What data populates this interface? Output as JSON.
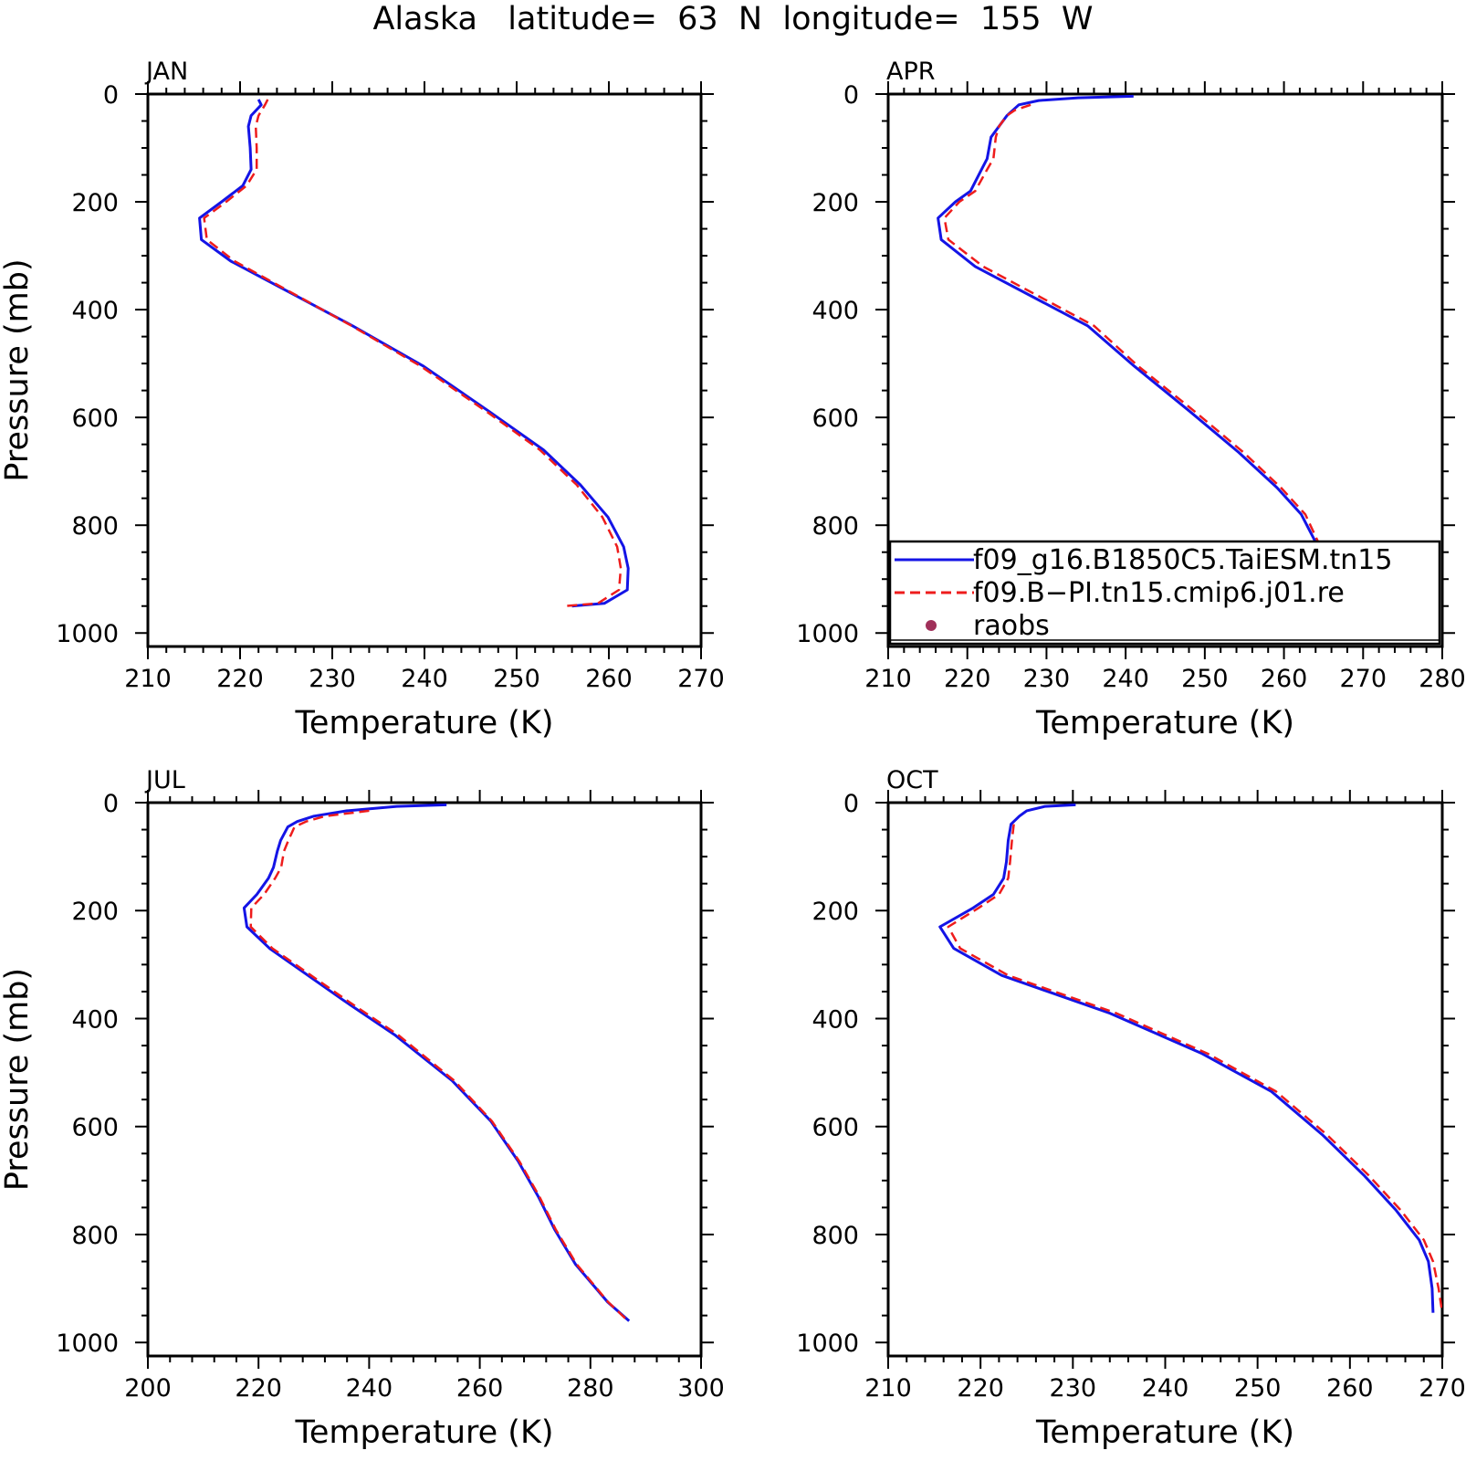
{
  "title": "Alaska   latitude=  63  N  longitude=  155  W",
  "legend": {
    "entries": [
      {
        "label": "f09_g16.B1850C5.TaiESM.tn15",
        "style": "solid",
        "color": "#1414e6"
      },
      {
        "label": "f09.B−PI.tn15.cmip6.j01.re",
        "style": "dashed",
        "color": "#ee1c1c"
      },
      {
        "label": "raobs",
        "style": "dot",
        "color": "#a0305a"
      }
    ]
  },
  "chart_data": [
    {
      "type": "line",
      "panel": "JAN",
      "xlabel": "Temperature (K)",
      "ylabel": "Pressure (mb)",
      "xlim": [
        210,
        270
      ],
      "ylim": [
        1000,
        0
      ],
      "xticks": [
        210,
        220,
        230,
        240,
        250,
        260,
        270
      ],
      "yticks": [
        0,
        200,
        400,
        600,
        800,
        1000
      ],
      "y_reversed": true,
      "series": [
        {
          "name": "f09_g16.B1850C5.TaiESM.tn15",
          "color": "#1414e6",
          "style": "solid",
          "points": [
            [
              222,
              10
            ],
            [
              222.3,
              20
            ],
            [
              221.2,
              40
            ],
            [
              220.9,
              60
            ],
            [
              221.1,
              100
            ],
            [
              221.2,
              140
            ],
            [
              220.3,
              170
            ],
            [
              218,
              200
            ],
            [
              215.6,
              230
            ],
            [
              215.8,
              270
            ],
            [
              219,
              310
            ],
            [
              232.2,
              430
            ],
            [
              239.9,
              505
            ],
            [
              247.1,
              590
            ],
            [
              252.9,
              660
            ],
            [
              256.9,
              725
            ],
            [
              259.9,
              785
            ],
            [
              261.6,
              840
            ],
            [
              262.1,
              880
            ],
            [
              262,
              920
            ],
            [
              259.5,
              945
            ],
            [
              256,
              950
            ]
          ]
        },
        {
          "name": "f09.B−PI.tn15.cmip6.j01.re",
          "color": "#ee1c1c",
          "style": "dashed",
          "points": [
            [
              223,
              10
            ],
            [
              222.7,
              20
            ],
            [
              222,
              40
            ],
            [
              221.7,
              60
            ],
            [
              221.8,
              100
            ],
            [
              221.8,
              140
            ],
            [
              220.7,
              170
            ],
            [
              218.5,
              200
            ],
            [
              216.1,
              230
            ],
            [
              216.4,
              270
            ],
            [
              219.4,
              310
            ],
            [
              232.1,
              430
            ],
            [
              239.6,
              505
            ],
            [
              246.8,
              590
            ],
            [
              252.5,
              660
            ],
            [
              256.5,
              725
            ],
            [
              259.3,
              785
            ],
            [
              260.9,
              840
            ],
            [
              261.3,
              880
            ],
            [
              261.1,
              920
            ],
            [
              258.8,
              945
            ],
            [
              255.3,
              950
            ]
          ]
        }
      ]
    },
    {
      "type": "line",
      "panel": "APR",
      "xlabel": "Temperature (K)",
      "ylabel": "",
      "xlim": [
        210,
        280
      ],
      "ylim": [
        1000,
        0
      ],
      "xticks": [
        210,
        220,
        230,
        240,
        250,
        260,
        270,
        280
      ],
      "yticks": [
        0,
        200,
        400,
        600,
        800,
        1000
      ],
      "y_reversed": true,
      "series": [
        {
          "name": "f09_g16.B1850C5.TaiESM.tn15",
          "color": "#1414e6",
          "style": "solid",
          "points": [
            [
              241,
              4
            ],
            [
              234,
              7
            ],
            [
              229,
              12
            ],
            [
              226.5,
              20
            ],
            [
              225,
              40
            ],
            [
              224,
              60
            ],
            [
              223,
              80
            ],
            [
              222.5,
              120
            ],
            [
              221.8,
              140
            ],
            [
              220.4,
              180
            ],
            [
              218.5,
              200
            ],
            [
              216.3,
              230
            ],
            [
              216.7,
              270
            ],
            [
              221,
              320
            ],
            [
              235.2,
              430
            ],
            [
              241.1,
              505
            ],
            [
              248.2,
              590
            ],
            [
              254.3,
              665
            ],
            [
              259.1,
              730
            ],
            [
              262.2,
              780
            ],
            [
              264.3,
              840
            ],
            [
              265.5,
              860
            ],
            [
              267,
              890
            ],
            [
              268.5,
              920
            ],
            [
              270,
              955
            ]
          ]
        },
        {
          "name": "f09.B−PI.tn15.cmip6.j01.re",
          "color": "#ee1c1c",
          "style": "dashed",
          "points": [
            [
              228,
              20
            ],
            [
              226,
              30
            ],
            [
              225,
              40
            ],
            [
              224,
              60
            ],
            [
              223.6,
              80
            ],
            [
              223.3,
              120
            ],
            [
              222.5,
              140
            ],
            [
              221,
              180
            ],
            [
              219,
              200
            ],
            [
              217.1,
              230
            ],
            [
              217.6,
              270
            ],
            [
              222,
              320
            ],
            [
              236,
              430
            ],
            [
              241.6,
              505
            ],
            [
              248.8,
              590
            ],
            [
              254.9,
              665
            ],
            [
              259.6,
              730
            ],
            [
              262.7,
              780
            ],
            [
              264.6,
              840
            ]
          ]
        }
      ]
    },
    {
      "type": "line",
      "panel": "JUL",
      "xlabel": "Temperature (K)",
      "ylabel": "Pressure (mb)",
      "xlim": [
        200,
        300
      ],
      "ylim": [
        1000,
        0
      ],
      "xticks": [
        200,
        220,
        240,
        260,
        280,
        300
      ],
      "yticks": [
        0,
        200,
        400,
        600,
        800,
        1000
      ],
      "y_reversed": true,
      "series": [
        {
          "name": "f09_g16.B1850C5.TaiESM.tn15",
          "color": "#1414e6",
          "style": "solid",
          "points": [
            [
              254,
              4
            ],
            [
              245,
              7
            ],
            [
              236,
              15
            ],
            [
              230,
              25
            ],
            [
              227,
              35
            ],
            [
              225.3,
              45
            ],
            [
              224,
              70
            ],
            [
              223.4,
              90
            ],
            [
              222.7,
              120
            ],
            [
              221.8,
              140
            ],
            [
              219.7,
              170
            ],
            [
              217.4,
              195
            ],
            [
              217.9,
              230
            ],
            [
              222,
              270
            ],
            [
              235.2,
              365
            ],
            [
              244.6,
              430
            ],
            [
              255,
              515
            ],
            [
              262,
              590
            ],
            [
              267,
              665
            ],
            [
              270.6,
              730
            ],
            [
              273.5,
              790
            ],
            [
              277.3,
              855
            ],
            [
              283.1,
              925
            ],
            [
              287,
              960
            ]
          ]
        },
        {
          "name": "f09.B−PI.tn15.cmip6.j01.re",
          "color": "#ee1c1c",
          "style": "dashed",
          "points": [
            [
              240,
              15
            ],
            [
              232,
              25
            ],
            [
              228.6,
              35
            ],
            [
              226.5,
              45
            ],
            [
              225.4,
              70
            ],
            [
              224.6,
              90
            ],
            [
              224.1,
              120
            ],
            [
              223,
              140
            ],
            [
              221,
              170
            ],
            [
              218.7,
              195
            ],
            [
              218.6,
              230
            ],
            [
              222.5,
              270
            ],
            [
              235.8,
              365
            ],
            [
              245.2,
              430
            ],
            [
              255.4,
              515
            ],
            [
              262.2,
              590
            ],
            [
              267.2,
              665
            ],
            [
              270.8,
              730
            ],
            [
              273.7,
              790
            ],
            [
              277.5,
              855
            ],
            [
              283.2,
              925
            ],
            [
              286.8,
              960
            ]
          ]
        }
      ]
    },
    {
      "type": "line",
      "panel": "OCT",
      "xlabel": "Temperature (K)",
      "ylabel": "",
      "xlim": [
        210,
        270
      ],
      "ylim": [
        1000,
        0
      ],
      "xticks": [
        210,
        220,
        230,
        240,
        250,
        260,
        270
      ],
      "yticks": [
        0,
        200,
        400,
        600,
        800,
        1000
      ],
      "y_reversed": true,
      "series": [
        {
          "name": "f09_g16.B1850C5.TaiESM.tn15",
          "color": "#1414e6",
          "style": "solid",
          "points": [
            [
              230.3,
              4
            ],
            [
              227,
              7
            ],
            [
              225,
              15
            ],
            [
              224.2,
              25
            ],
            [
              223.3,
              40
            ],
            [
              223,
              70
            ],
            [
              222.8,
              110
            ],
            [
              222.5,
              140
            ],
            [
              221.4,
              170
            ],
            [
              219.2,
              195
            ],
            [
              215.6,
              230
            ],
            [
              217.1,
              270
            ],
            [
              222.3,
              320
            ],
            [
              234,
              390
            ],
            [
              244,
              465
            ],
            [
              251.5,
              535
            ],
            [
              257,
              615
            ],
            [
              261.5,
              690
            ],
            [
              265,
              755
            ],
            [
              267.5,
              810
            ],
            [
              268.5,
              850
            ],
            [
              268.9,
              900
            ],
            [
              269,
              945
            ]
          ]
        },
        {
          "name": "f09.B−PI.tn15.cmip6.j01.re",
          "color": "#ee1c1c",
          "style": "dashed",
          "points": [
            [
              223.6,
              40
            ],
            [
              223.4,
              70
            ],
            [
              223.2,
              110
            ],
            [
              223,
              140
            ],
            [
              222,
              170
            ],
            [
              219.8,
              195
            ],
            [
              216.5,
              230
            ],
            [
              217.8,
              270
            ],
            [
              223,
              320
            ],
            [
              234.7,
              390
            ],
            [
              244.6,
              465
            ],
            [
              252,
              535
            ],
            [
              257.5,
              615
            ],
            [
              262,
              690
            ],
            [
              265.5,
              755
            ],
            [
              268,
              810
            ],
            [
              269,
              850
            ],
            [
              269.6,
              900
            ],
            [
              270,
              945
            ]
          ]
        }
      ]
    }
  ]
}
